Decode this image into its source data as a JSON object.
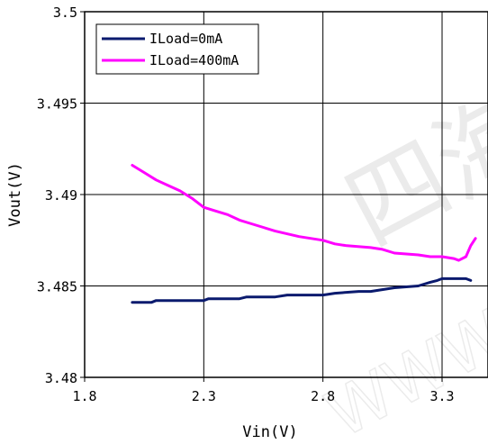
{
  "chart_data": {
    "type": "line",
    "title": "",
    "xlabel": "Vin(V)",
    "ylabel": "Vout(V)",
    "xlim": [
      1.8,
      3.45
    ],
    "ylim": [
      3.48,
      3.5
    ],
    "xticks": [
      1.8,
      2.3,
      2.8,
      3.3
    ],
    "xtick_labels": [
      "1.8",
      "2.3",
      "2.8",
      "3.3"
    ],
    "yticks": [
      3.48,
      3.485,
      3.49,
      3.495,
      3.5
    ],
    "ytick_labels": [
      "3.48",
      "3.485",
      "3.49",
      "3.495",
      "3.5"
    ],
    "grid": true,
    "legend_position": "top-left",
    "series": [
      {
        "name": "ILoad=0mA",
        "color": "#0a1a6e",
        "x": [
          2.0,
          2.08,
          2.1,
          2.2,
          2.3,
          2.32,
          2.45,
          2.48,
          2.6,
          2.65,
          2.8,
          2.85,
          2.95,
          3.0,
          3.1,
          3.2,
          3.25,
          3.28,
          3.3,
          3.35,
          3.4,
          3.42
        ],
        "values": [
          3.4841,
          3.4841,
          3.4842,
          3.4842,
          3.4842,
          3.4843,
          3.4843,
          3.4844,
          3.4844,
          3.4845,
          3.4845,
          3.4846,
          3.4847,
          3.4847,
          3.4849,
          3.485,
          3.4852,
          3.4853,
          3.4854,
          3.4854,
          3.4854,
          3.4853
        ]
      },
      {
        "name": "ILoad=400mA",
        "color": "#ff00ff",
        "x": [
          2.0,
          2.05,
          2.1,
          2.15,
          2.2,
          2.25,
          2.3,
          2.35,
          2.4,
          2.45,
          2.5,
          2.55,
          2.6,
          2.7,
          2.8,
          2.85,
          2.9,
          3.0,
          3.05,
          3.1,
          3.2,
          3.25,
          3.3,
          3.35,
          3.37,
          3.4,
          3.42,
          3.44
        ],
        "values": [
          3.4916,
          3.4912,
          3.4908,
          3.4905,
          3.4902,
          3.4898,
          3.4893,
          3.4891,
          3.4889,
          3.4886,
          3.4884,
          3.4882,
          3.488,
          3.4877,
          3.4875,
          3.4873,
          3.4872,
          3.4871,
          3.487,
          3.4868,
          3.4867,
          3.4866,
          3.4866,
          3.4865,
          3.4864,
          3.4866,
          3.4872,
          3.4876
        ]
      }
    ]
  },
  "watermark": {
    "chinese": "四海",
    "url_text": "WWW."
  }
}
